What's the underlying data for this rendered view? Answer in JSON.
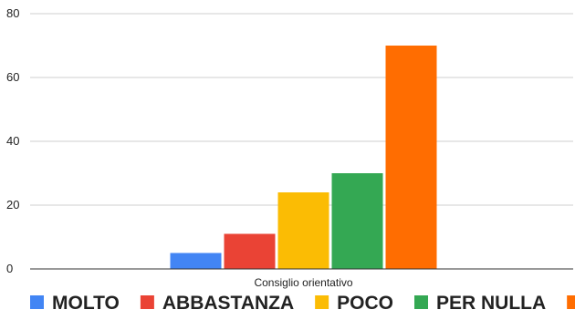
{
  "chart_data": {
    "type": "bar",
    "title": "",
    "xlabel": "",
    "ylabel": "",
    "categories": [
      "Consiglio orientativo"
    ],
    "ylim": [
      0,
      80
    ],
    "yticks": [
      0,
      20,
      40,
      60,
      80
    ],
    "grid": true,
    "legend_position": "bottom",
    "series": [
      {
        "name": "MOLTO",
        "color": "#4285f4",
        "values": [
          5
        ]
      },
      {
        "name": "ABBASTANZA",
        "color": "#ea4335",
        "values": [
          11
        ]
      },
      {
        "name": "POCO",
        "color": "#fbbc04",
        "values": [
          24
        ]
      },
      {
        "name": "PER NULLA",
        "color": "#34a853",
        "values": [
          30
        ]
      },
      {
        "name": "",
        "color": "#ff6d01",
        "values": [
          70
        ]
      }
    ]
  }
}
